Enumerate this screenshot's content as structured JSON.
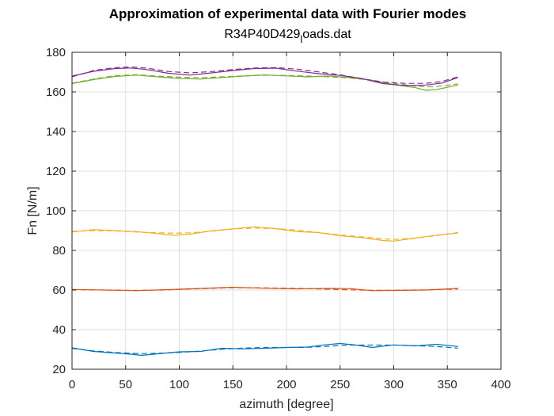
{
  "chart_data": {
    "type": "line",
    "title": "Approximation of experimental data with Fourier modes",
    "subtitle_main": "R34P40D429",
    "subtitle_sub": "l",
    "subtitle_rest": "oads.dat",
    "xlabel": "azimuth [degree]",
    "ylabel": "Fn [N/m]",
    "xlim": [
      0,
      400
    ],
    "ylim": [
      20,
      180
    ],
    "xticks": [
      0,
      50,
      100,
      150,
      200,
      250,
      300,
      350,
      400
    ],
    "yticks": [
      20,
      40,
      60,
      80,
      100,
      120,
      140,
      160,
      180
    ],
    "grid": true,
    "legend": "none",
    "series": [
      {
        "color": "#0072BD",
        "x": [
          0,
          20,
          40,
          55,
          65,
          80,
          100,
          120,
          140,
          160,
          180,
          200,
          220,
          235,
          250,
          265,
          280,
          300,
          320,
          340,
          360
        ],
        "experimental": [
          30.8,
          29.0,
          28.2,
          27.6,
          27.0,
          27.8,
          28.8,
          29.0,
          30.6,
          30.3,
          30.6,
          31.0,
          31.2,
          32.3,
          33.0,
          32.2,
          31.0,
          32.3,
          31.8,
          32.6,
          31.5
        ],
        "fourier": [
          30.5,
          29.3,
          28.5,
          28.1,
          27.9,
          28.1,
          28.5,
          29.2,
          30.1,
          30.7,
          31.0,
          31.0,
          31.1,
          31.5,
          32.0,
          32.2,
          32.2,
          32.2,
          31.9,
          31.5,
          30.7
        ]
      },
      {
        "color": "#D95319",
        "x": [
          0,
          30,
          60,
          90,
          120,
          150,
          180,
          210,
          240,
          260,
          280,
          300,
          330,
          360
        ],
        "experimental": [
          60.3,
          60.0,
          59.7,
          60.2,
          60.8,
          61.4,
          60.9,
          60.6,
          60.8,
          60.7,
          59.7,
          59.8,
          60.0,
          60.8
        ],
        "fourier": [
          60.2,
          60.0,
          59.8,
          60.1,
          60.7,
          61.2,
          61.1,
          60.8,
          60.4,
          60.1,
          59.9,
          59.9,
          60.1,
          60.5
        ]
      },
      {
        "color": "#EDB120",
        "x": [
          0,
          20,
          40,
          60,
          80,
          95,
          110,
          130,
          150,
          170,
          190,
          210,
          230,
          250,
          270,
          290,
          300,
          320,
          340,
          360
        ],
        "experimental": [
          89.3,
          90.5,
          90.0,
          89.5,
          88.5,
          87.6,
          88.2,
          89.9,
          90.9,
          91.9,
          91.0,
          89.5,
          89.0,
          87.4,
          86.5,
          85.0,
          84.7,
          86.2,
          87.7,
          88.8
        ],
        "fourier": [
          89.6,
          90.0,
          89.9,
          89.3,
          88.9,
          88.7,
          88.9,
          89.7,
          90.8,
          91.3,
          91.0,
          90.2,
          89.0,
          87.8,
          86.8,
          85.9,
          85.5,
          86.2,
          87.5,
          89.0
        ]
      },
      {
        "color": "#77AC30",
        "x": [
          0,
          20,
          40,
          60,
          80,
          100,
          120,
          140,
          160,
          180,
          200,
          220,
          240,
          260,
          280,
          300,
          320,
          330,
          340,
          360
        ],
        "experimental": [
          164.2,
          166.2,
          167.8,
          168.5,
          167.6,
          166.8,
          166.5,
          167.3,
          168.0,
          168.6,
          168.1,
          167.6,
          168.0,
          167.2,
          165.9,
          163.7,
          162.2,
          160.8,
          161.2,
          163.5
        ],
        "fourier": [
          164.4,
          166.5,
          168.2,
          168.7,
          168.0,
          167.4,
          167.2,
          167.6,
          168.1,
          168.4,
          168.3,
          168.0,
          167.6,
          167.0,
          165.8,
          164.2,
          163.0,
          162.6,
          162.7,
          164.1
        ]
      },
      {
        "color": "#7E2F8E",
        "x": [
          0,
          20,
          40,
          55,
          70,
          90,
          110,
          130,
          150,
          170,
          190,
          210,
          230,
          250,
          270,
          290,
          310,
          330,
          345,
          360
        ],
        "experimental": [
          168.0,
          170.4,
          171.8,
          172.1,
          171.3,
          169.4,
          168.5,
          169.6,
          170.8,
          171.8,
          172.0,
          170.5,
          169.2,
          168.3,
          166.8,
          164.2,
          163.2,
          163.5,
          164.5,
          167.3
        ],
        "fourier": [
          167.6,
          170.8,
          172.3,
          172.6,
          172.0,
          170.3,
          169.6,
          170.3,
          171.3,
          172.1,
          172.3,
          171.5,
          170.1,
          168.6,
          166.7,
          165.0,
          164.3,
          164.3,
          165.3,
          167.6
        ]
      }
    ]
  }
}
